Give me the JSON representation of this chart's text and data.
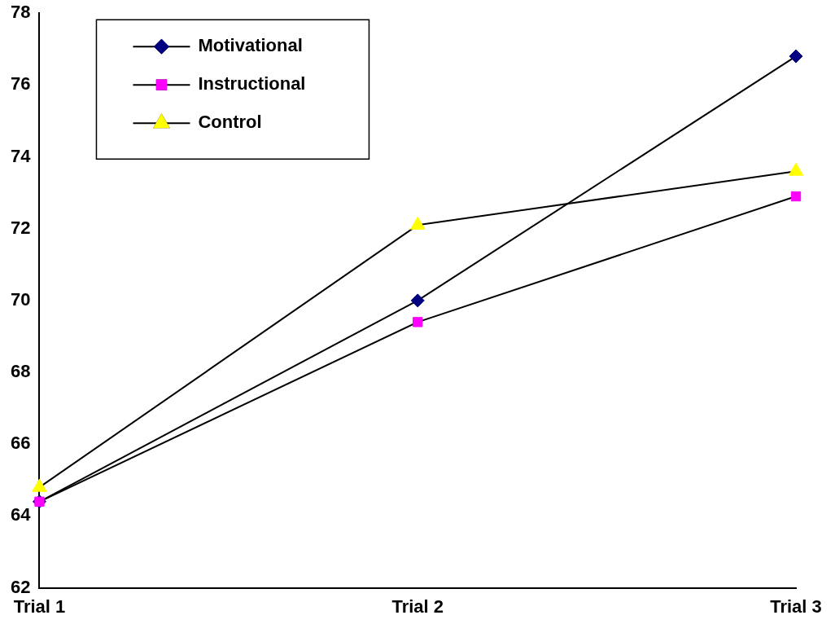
{
  "chart_data": {
    "type": "line",
    "categories": [
      "Trial 1",
      "Trial 2",
      "Trial 3"
    ],
    "ylim": [
      62,
      78
    ],
    "yticks": [
      62,
      64,
      66,
      68,
      70,
      72,
      74,
      76,
      78
    ],
    "grid": false,
    "legend": "top left",
    "series": [
      {
        "name": "Motivational",
        "color": "#000080",
        "marker": "diamond",
        "values": [
          64.4,
          70.0,
          76.8
        ]
      },
      {
        "name": "Instructional",
        "color": "#ff00ff",
        "marker": "square",
        "values": [
          64.4,
          69.4,
          72.9
        ]
      },
      {
        "name": "Control",
        "color": "#ffff00",
        "marker": "triangle",
        "values": [
          64.8,
          72.1,
          73.6
        ]
      }
    ]
  }
}
